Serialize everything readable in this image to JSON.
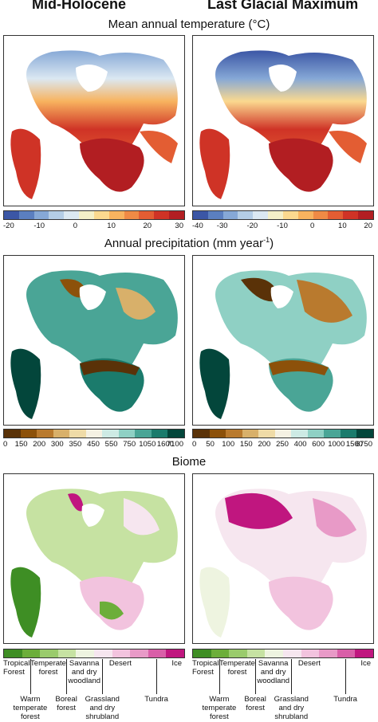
{
  "headers": {
    "left": "Mid-Holocene",
    "right": "Last Glacial Maximum"
  },
  "temperature": {
    "title": "Mean annual temperature (°C)",
    "ticks_left": [
      "-20",
      "-10",
      "0",
      "10",
      "20",
      "30"
    ],
    "ticks_right": [
      "-40",
      "-30",
      "-20",
      "-10",
      "0",
      "10",
      "20"
    ],
    "colors": [
      "#3b56a5",
      "#5b7fc0",
      "#86a8d6",
      "#b4cde6",
      "#dbe8f2",
      "#f5f0c8",
      "#fbd98f",
      "#f8b35f",
      "#f08a45",
      "#e35d33",
      "#cf3326",
      "#b21e22"
    ]
  },
  "precipitation": {
    "title_main": "Annual precipitation (mm year",
    "title_sup": "-1",
    "title_end": ")",
    "ticks_left": [
      "0",
      "150",
      "200",
      "300",
      "350",
      "450",
      "550",
      "750",
      "1050",
      "1600",
      "7100"
    ],
    "ticks_right": [
      "0",
      "50",
      "100",
      "150",
      "200",
      "250",
      "400",
      "600",
      "1000",
      "1500",
      "6750"
    ],
    "colors": [
      "#5a3208",
      "#8c510a",
      "#b97a2e",
      "#d8b06a",
      "#efdba7",
      "#f5f1e3",
      "#cdeae4",
      "#8fd0c4",
      "#4aa596",
      "#1b7b6c",
      "#03463b"
    ]
  },
  "biome": {
    "title": "Biome",
    "colors": [
      "#3e8e24",
      "#6cae3a",
      "#9acb6c",
      "#c6e2a2",
      "#eef4e0",
      "#f6e6ef",
      "#f2c3de",
      "#e89ac7",
      "#d95fa8",
      "#c0167f"
    ],
    "top_labels": [
      "Tropical\nForest",
      "Temperate\nforest",
      "Savanna\nand dry\nwoodland",
      "Desert",
      "Ice"
    ],
    "bottom_labels": [
      "Warm\ntemperate\nforest",
      "Boreal\nforest",
      "Grassland\nand dry\nshrubland",
      "Tundra"
    ]
  }
}
